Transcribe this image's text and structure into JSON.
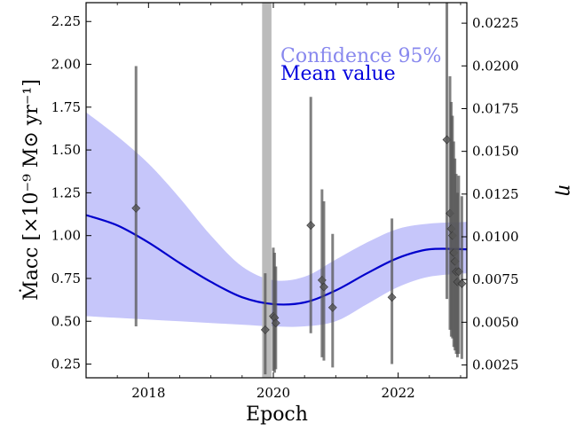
{
  "chart_data": {
    "type": "line",
    "xlabel": "Epoch",
    "ylabel": "Ṁacc [×10⁻⁹ M⊙ yr⁻¹]",
    "y2label": "η",
    "xlim": [
      2017.0,
      2023.1
    ],
    "ylim": [
      0.17,
      2.36
    ],
    "y2lim": [
      0.00175,
      0.0237
    ],
    "x_ticks": [
      2018,
      2020,
      2022
    ],
    "y_ticks": [
      0.25,
      0.5,
      0.75,
      1.0,
      1.25,
      1.5,
      1.75,
      2.0,
      2.25
    ],
    "y_tick_labels": [
      "0.25",
      "0.50",
      "0.75",
      "1.00",
      "1.25",
      "1.50",
      "1.75",
      "2.00",
      "2.25"
    ],
    "y2_ticks": [
      0.0025,
      0.005,
      0.0075,
      0.01,
      0.0125,
      0.015,
      0.0175,
      0.02,
      0.0225
    ],
    "y2_tick_labels": [
      "0.0025",
      "0.0050",
      "0.0075",
      "0.0100",
      "0.0125",
      "0.0150",
      "0.0175",
      "0.0200",
      "0.0225"
    ],
    "legend": {
      "placement": "top-right",
      "entries": [
        {
          "name": "Confidence 95%",
          "color": "#8888ee"
        },
        {
          "name": "Mean value",
          "color": "#0000dd"
        }
      ]
    },
    "shaded_band": {
      "x_start": 2019.82,
      "x_end": 2019.97,
      "color": "#bbbbbb"
    },
    "mean_curve": {
      "color": "#0000cc",
      "x": [
        2017.0,
        2017.5,
        2018.0,
        2018.5,
        2019.0,
        2019.5,
        2020.0,
        2020.5,
        2021.0,
        2021.5,
        2022.0,
        2022.5,
        2023.1
      ],
      "y": [
        1.12,
        1.06,
        0.96,
        0.84,
        0.73,
        0.64,
        0.6,
        0.61,
        0.68,
        0.78,
        0.87,
        0.92,
        0.92
      ]
    },
    "confidence_band": {
      "color": "#c6c6fa",
      "x": [
        2017.0,
        2017.5,
        2018.0,
        2018.5,
        2019.0,
        2019.5,
        2020.0,
        2020.5,
        2021.0,
        2021.5,
        2022.0,
        2022.5,
        2023.1
      ],
      "lower": [
        0.53,
        0.52,
        0.51,
        0.5,
        0.49,
        0.48,
        0.47,
        0.47,
        0.5,
        0.6,
        0.7,
        0.76,
        0.78
      ],
      "upper": [
        1.72,
        1.58,
        1.42,
        1.22,
        1.0,
        0.82,
        0.74,
        0.76,
        0.86,
        0.96,
        1.04,
        1.07,
        1.08
      ]
    },
    "points": [
      {
        "x": 2017.8,
        "y": 1.16,
        "ylo": 0.47,
        "yhi": 1.99
      },
      {
        "x": 2019.87,
        "y": 0.45,
        "ylo": 0.19,
        "yhi": 0.78
      },
      {
        "x": 2020.0,
        "y": 0.53,
        "ylo": 0.21,
        "yhi": 0.93
      },
      {
        "x": 2020.02,
        "y": 0.52,
        "ylo": 0.2,
        "yhi": 0.9
      },
      {
        "x": 2020.04,
        "y": 0.49,
        "ylo": 0.22,
        "yhi": 0.82
      },
      {
        "x": 2020.6,
        "y": 1.06,
        "ylo": 0.43,
        "yhi": 1.81
      },
      {
        "x": 2020.78,
        "y": 0.74,
        "ylo": 0.29,
        "yhi": 1.27
      },
      {
        "x": 2020.81,
        "y": 0.7,
        "ylo": 0.27,
        "yhi": 1.2
      },
      {
        "x": 2020.95,
        "y": 0.58,
        "ylo": 0.23,
        "yhi": 1.01
      },
      {
        "x": 2021.9,
        "y": 0.64,
        "ylo": 0.25,
        "yhi": 1.1
      },
      {
        "x": 2022.78,
        "y": 1.56,
        "ylo": 0.63,
        "yhi": 2.36
      },
      {
        "x": 2022.83,
        "y": 1.13,
        "ylo": 0.45,
        "yhi": 1.93
      },
      {
        "x": 2022.85,
        "y": 1.04,
        "ylo": 0.41,
        "yhi": 1.78
      },
      {
        "x": 2022.87,
        "y": 1.0,
        "ylo": 0.4,
        "yhi": 1.7
      },
      {
        "x": 2022.89,
        "y": 0.9,
        "ylo": 0.35,
        "yhi": 1.55
      },
      {
        "x": 2022.91,
        "y": 0.85,
        "ylo": 0.33,
        "yhi": 1.45
      },
      {
        "x": 2022.93,
        "y": 0.79,
        "ylo": 0.31,
        "yhi": 1.36
      },
      {
        "x": 2022.95,
        "y": 0.73,
        "ylo": 0.29,
        "yhi": 1.25
      },
      {
        "x": 2022.97,
        "y": 0.79,
        "ylo": 0.31,
        "yhi": 1.35
      },
      {
        "x": 2023.02,
        "y": 0.72,
        "ylo": 0.28,
        "yhi": 1.23
      }
    ]
  }
}
